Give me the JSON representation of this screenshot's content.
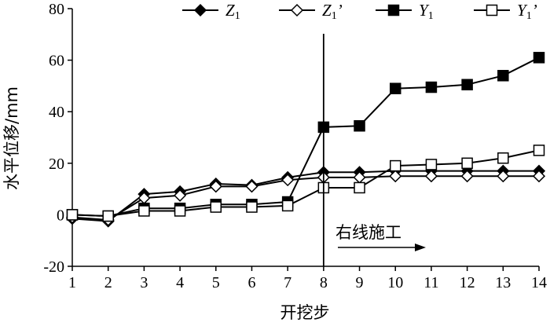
{
  "chart_data": {
    "type": "line",
    "title": "",
    "xlabel": "开挖步",
    "ylabel": "水平位移/mm",
    "xlim": [
      1,
      14
    ],
    "ylim": [
      -20,
      80
    ],
    "x": [
      1,
      2,
      3,
      4,
      5,
      6,
      7,
      8,
      9,
      10,
      11,
      12,
      13,
      14
    ],
    "x_ticks": [
      "1",
      "2",
      "3",
      "4",
      "5",
      "6",
      "7",
      "8",
      "9",
      "10",
      "11",
      "12",
      "13",
      "14"
    ],
    "y_ticks": [
      "-20",
      "0",
      "20",
      "40",
      "60",
      "80"
    ],
    "grid": false,
    "legend_position": "top-right",
    "series": [
      {
        "name": "Z1",
        "label_main": "Z",
        "label_sub": "1",
        "label_prime": "",
        "marker": "diamond-filled",
        "values": [
          -1.5,
          -2.5,
          8,
          9,
          12,
          11.5,
          14.5,
          16.5,
          16.5,
          17,
          17,
          17,
          17,
          17
        ]
      },
      {
        "name": "Z1'",
        "label_main": "Z",
        "label_sub": "1",
        "label_prime": "’",
        "marker": "diamond-open",
        "values": [
          -1,
          -2,
          6.5,
          7.5,
          11,
          11,
          13.5,
          14.5,
          14.5,
          15,
          15,
          15,
          15,
          15
        ]
      },
      {
        "name": "Y1",
        "label_main": "Y",
        "label_sub": "1",
        "label_prime": "",
        "marker": "square-filled",
        "values": [
          0,
          -0.5,
          2.5,
          2.5,
          4,
          4,
          5,
          34,
          34.5,
          49,
          49.5,
          50.5,
          54,
          61
        ]
      },
      {
        "name": "Y1'",
        "label_main": "Y",
        "label_sub": "1",
        "label_prime": "’",
        "marker": "square-open",
        "values": [
          0,
          -0.5,
          1.5,
          1.5,
          3,
          3,
          3.5,
          10.5,
          10.5,
          19,
          19.5,
          20,
          22,
          25
        ]
      }
    ],
    "annotations": {
      "vertical_line_x": 8,
      "text": "右线施工",
      "arrow_direction": "right"
    }
  }
}
